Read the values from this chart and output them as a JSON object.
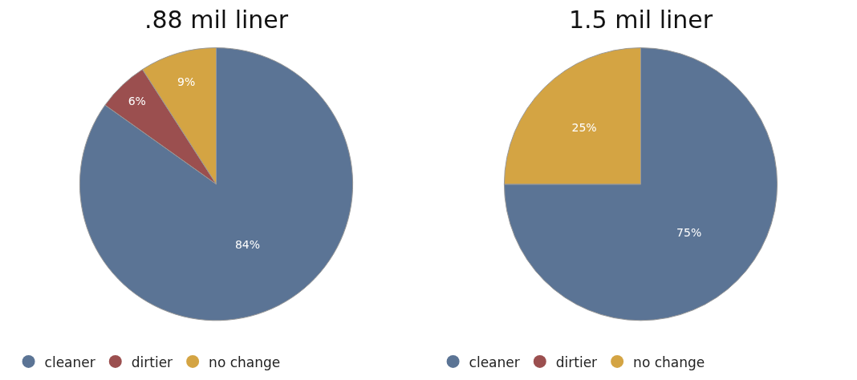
{
  "chart_data": [
    {
      "type": "pie",
      "title": ".88 mil liner",
      "categories": [
        "cleaner",
        "dirtier",
        "no change"
      ],
      "values": [
        84,
        6,
        9
      ],
      "colors": [
        "#5b7495",
        "#9b4f4f",
        "#d4a443"
      ],
      "value_labels": [
        "84%",
        "6%",
        "9%"
      ],
      "legend": "bottom"
    },
    {
      "type": "pie",
      "title": "1.5 mil liner",
      "categories": [
        "cleaner",
        "dirtier",
        "no change"
      ],
      "values": [
        75,
        0,
        25
      ],
      "colors": [
        "#5b7495",
        "#9b4f4f",
        "#d4a443"
      ],
      "value_labels": [
        "75%",
        null,
        "25%"
      ],
      "legend": "bottom"
    }
  ]
}
